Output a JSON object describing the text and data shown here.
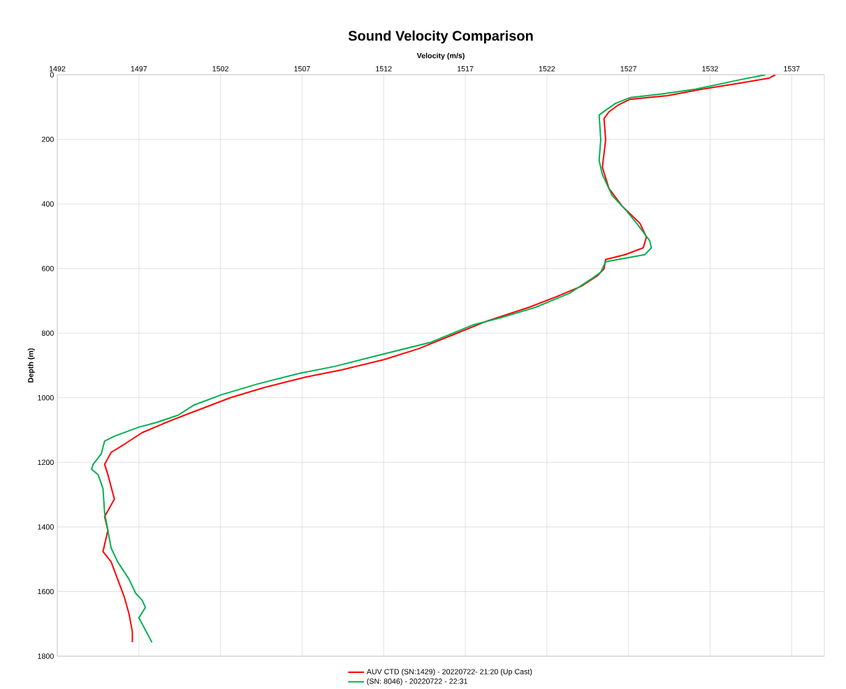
{
  "chart_data": {
    "type": "line",
    "title": "Sound Velocity Comparison",
    "xlabel": "Velocity (m/s)",
    "ylabel": "Depth (m)",
    "xlim": [
      1492,
      1539
    ],
    "xticks": [
      1492,
      1497,
      1502,
      1507,
      1512,
      1517,
      1522,
      1527,
      1532,
      1537
    ],
    "ylim": [
      1800,
      0
    ],
    "yticks": [
      0,
      200,
      400,
      600,
      800,
      1000,
      1200,
      1400,
      1600,
      1800
    ],
    "grid": true,
    "legend": "bottom",
    "marker": "none",
    "line_style": "solid",
    "series": [
      {
        "name": "AUV CTD (SN:1429) - 20220722- 21:20 (Up Cast)",
        "color": "#ff0000",
        "x": [
          1536.0,
          1535.6,
          1534.1,
          1531.5,
          1529.4,
          1527.1,
          1526.4,
          1525.8,
          1525.5,
          1525.6,
          1525.4,
          1525.8,
          1526.6,
          1527.7,
          1528.1,
          1527.9,
          1526.8,
          1525.6,
          1525.5,
          1525.1,
          1524.1,
          1522.6,
          1520.9,
          1518.3,
          1516.2,
          1514.1,
          1512.0,
          1509.4,
          1507.2,
          1504.7,
          1502.6,
          1500.9,
          1499.8,
          1498.5,
          1497.2,
          1496.2,
          1495.3,
          1494.9,
          1495.1,
          1495.5,
          1494.9,
          1495.1,
          1494.8,
          1495.3,
          1495.7,
          1496.1,
          1496.4,
          1496.6,
          1496.6
        ],
        "values": [
          0,
          11,
          24,
          45,
          65,
          76,
          93,
          115,
          136,
          201,
          287,
          352,
          406,
          460,
          503,
          536,
          557,
          572,
          601,
          622,
          655,
          687,
          720,
          763,
          806,
          849,
          882,
          914,
          936,
          968,
          1000,
          1033,
          1054,
          1080,
          1108,
          1141,
          1169,
          1206,
          1238,
          1314,
          1368,
          1411,
          1476,
          1508,
          1562,
          1616,
          1670,
          1724,
          1757
        ]
      },
      {
        "name": "(SN: 8046) - 20220722 - 22:31",
        "color": "#00b050",
        "x": [
          1535.4,
          1533.7,
          1531.1,
          1529.0,
          1527.1,
          1526.2,
          1525.6,
          1525.2,
          1525.3,
          1525.2,
          1525.4,
          1526.0,
          1526.8,
          1527.5,
          1528.3,
          1528.4,
          1528.0,
          1525.6,
          1525.3,
          1524.7,
          1523.4,
          1521.3,
          1519.2,
          1517.5,
          1514.9,
          1511.5,
          1509.0,
          1506.8,
          1504.3,
          1502.1,
          1500.4,
          1499.4,
          1498.1,
          1497.0,
          1495.5,
          1494.9,
          1494.7,
          1494.2,
          1494.1,
          1494.5,
          1494.8,
          1494.9,
          1495.1,
          1495.3,
          1495.7,
          1496.4,
          1496.8,
          1497.2,
          1497.4,
          1497.0,
          1497.8
        ],
        "values": [
          0,
          17,
          45,
          60,
          71,
          89,
          110,
          125,
          201,
          266,
          309,
          374,
          417,
          460,
          514,
          536,
          557,
          579,
          611,
          633,
          676,
          720,
          752,
          774,
          828,
          871,
          903,
          925,
          957,
          990,
          1022,
          1054,
          1076,
          1091,
          1119,
          1134,
          1173,
          1206,
          1221,
          1238,
          1281,
          1357,
          1411,
          1465,
          1508,
          1562,
          1605,
          1627,
          1649,
          1681,
          1757
        ]
      }
    ]
  }
}
